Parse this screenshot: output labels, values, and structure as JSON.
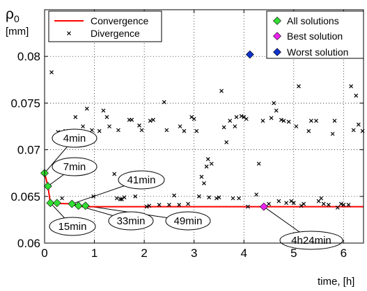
{
  "chart_data": {
    "type": "scatter",
    "ylabel_symbol": "ρ",
    "ylabel_subscript": "0",
    "ylabel_unit": "[mm]",
    "xlabel": "time, [h]",
    "xlim": [
      0,
      6.4
    ],
    "ylim": [
      0.06,
      0.085
    ],
    "xticks": [
      0,
      1,
      2,
      3,
      4,
      5,
      6
    ],
    "xtick_labels": [
      "0",
      "1",
      "2",
      "3",
      "4",
      "5",
      "6"
    ],
    "yticks": [
      0.06,
      0.065,
      0.07,
      0.075,
      0.08
    ],
    "ytick_labels": [
      "0.06",
      "0.065",
      "0.07",
      "0.075",
      "0.08"
    ],
    "grid": "dotted",
    "colors": {
      "convergence": "#ff0000",
      "all_solutions": "#33dd33",
      "best_solution": "#ee22ee",
      "worst_solution": "#1133cc",
      "divergence": "#000000"
    },
    "legend_left": {
      "placement": "top-left",
      "entries": [
        {
          "label": "Convergence",
          "marker": "line"
        },
        {
          "label": "Divergence",
          "marker": "x"
        }
      ]
    },
    "legend_right": {
      "placement": "top-right",
      "entries": [
        {
          "label": "All solutions",
          "marker": "diamond-green"
        },
        {
          "label": "Best solution",
          "marker": "diamond-magenta"
        },
        {
          "label": "Worst solution",
          "marker": "diamond-blue"
        }
      ]
    },
    "convergence": {
      "x": [
        0,
        0.067,
        0.117,
        0.25,
        0.55,
        0.68,
        0.82,
        4.4,
        6.4
      ],
      "y": [
        0.0675,
        0.0661,
        0.06425,
        0.06425,
        0.0642,
        0.064,
        0.0639,
        0.0639,
        0.0639
      ]
    },
    "all_solutions": {
      "x": [
        0,
        0.067,
        0.117,
        0.25,
        0.55,
        0.68,
        0.82
      ],
      "y": [
        0.0675,
        0.0661,
        0.0643,
        0.0643,
        0.0642,
        0.064,
        0.064
      ]
    },
    "best_solution": {
      "x": [
        4.4
      ],
      "y": [
        0.0639
      ]
    },
    "worst_solution": {
      "x": [
        4.12
      ],
      "y": [
        0.0802
      ]
    },
    "divergence": {
      "x": [
        0.14,
        0.27,
        0.35,
        0.42,
        0.5,
        0.62,
        0.77,
        0.85,
        0.95,
        0.98,
        1.1,
        1.18,
        1.25,
        1.3,
        1.4,
        1.45,
        1.48,
        1.52,
        1.55,
        1.6,
        1.7,
        1.75,
        1.82,
        1.9,
        1.95,
        2.05,
        2.1,
        2.12,
        2.18,
        2.3,
        2.4,
        2.45,
        2.5,
        2.6,
        2.7,
        2.72,
        2.8,
        2.88,
        2.95,
        3.0,
        3.05,
        3.1,
        3.15,
        3.2,
        3.25,
        3.28,
        3.3,
        3.35,
        3.45,
        3.5,
        3.55,
        3.6,
        3.65,
        3.72,
        3.78,
        3.82,
        3.85,
        3.9,
        3.95,
        4.0,
        4.05,
        4.08,
        4.25,
        4.3,
        4.38,
        4.5,
        4.55,
        4.6,
        4.65,
        4.7,
        4.75,
        4.8,
        4.85,
        4.9,
        4.95,
        5.0,
        5.05,
        5.1,
        5.15,
        5.2,
        5.3,
        5.35,
        5.45,
        5.5,
        5.55,
        5.6,
        5.7,
        5.78,
        5.82,
        5.88,
        5.95,
        6.0,
        6.1,
        6.15,
        6.2,
        6.25,
        6.3,
        6.38
      ],
      "y": [
        0.0783,
        0.0719,
        0.0648,
        0.072,
        0.0713,
        0.0735,
        0.0725,
        0.0744,
        0.0721,
        0.065,
        0.072,
        0.0742,
        0.0735,
        0.0725,
        0.0674,
        0.0648,
        0.0721,
        0.0647,
        0.0647,
        0.0649,
        0.0732,
        0.0732,
        0.065,
        0.0726,
        0.0721,
        0.0639,
        0.064,
        0.0731,
        0.0732,
        0.0641,
        0.0751,
        0.0721,
        0.0641,
        0.0651,
        0.0641,
        0.0725,
        0.072,
        0.0642,
        0.0735,
        0.0733,
        0.072,
        0.065,
        0.0671,
        0.0664,
        0.0682,
        0.069,
        0.0649,
        0.0685,
        0.0648,
        0.0649,
        0.0763,
        0.0724,
        0.0708,
        0.0731,
        0.0648,
        0.0725,
        0.0735,
        0.0648,
        0.0736,
        0.0735,
        0.0733,
        0.0639,
        0.0652,
        0.0685,
        0.0731,
        0.0642,
        0.0734,
        0.075,
        0.0742,
        0.0645,
        0.0732,
        0.0731,
        0.0643,
        0.073,
        0.0645,
        0.0643,
        0.0725,
        0.0768,
        0.064,
        0.0642,
        0.072,
        0.0731,
        0.0731,
        0.0645,
        0.0648,
        0.0642,
        0.0641,
        0.0717,
        0.0731,
        0.0638,
        0.0642,
        0.0641,
        0.0641,
        0.0768,
        0.0721,
        0.0758,
        0.0727,
        0.072
      ]
    },
    "annotations": [
      {
        "label": "4min",
        "x": 0,
        "y": 0.0675
      },
      {
        "label": "7min",
        "x": 0.067,
        "y": 0.0661
      },
      {
        "label": "15min",
        "x": 0.117,
        "y": 0.0643
      },
      {
        "label": "41min",
        "x": 0.55,
        "y": 0.0642
      },
      {
        "label": "33min",
        "x": 0.68,
        "y": 0.064
      },
      {
        "label": "49min",
        "x": 0.82,
        "y": 0.064
      },
      {
        "label": "4h24min",
        "x": 4.4,
        "y": 0.0639
      }
    ]
  }
}
